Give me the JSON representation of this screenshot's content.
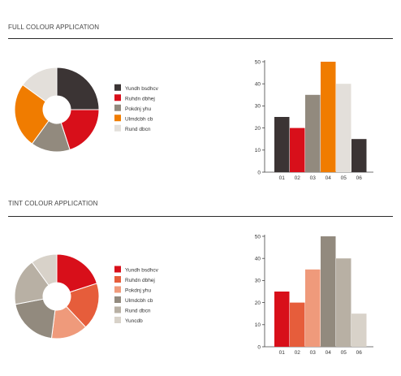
{
  "sections": [
    {
      "title": "FULL COLOUR APPLICATION",
      "pie": {
        "type": "pie",
        "donut": true,
        "labels": [
          "Yundh bsdhcv",
          "Ruhdn dbhej",
          "Pokdnj yhu",
          "Ulmdcbh cb",
          "Rund dbcn"
        ],
        "values": [
          25,
          20,
          15,
          25,
          15
        ],
        "colors": [
          "#3b3434",
          "#d80f1a",
          "#928a7e",
          "#f07c00",
          "#e3dfda"
        ],
        "legend_position": "right"
      },
      "bar": {
        "type": "bar",
        "categories": [
          "01",
          "02",
          "03",
          "04",
          "05",
          "06"
        ],
        "values": [
          25,
          20,
          35,
          50,
          40,
          15
        ],
        "colors": [
          "#3b3434",
          "#d80f1a",
          "#928a7e",
          "#f07c00",
          "#e3dfda",
          "#3b3434"
        ],
        "ylim": [
          0,
          50
        ],
        "yticks": [
          0,
          10,
          20,
          30,
          40,
          50
        ],
        "grid": false
      }
    },
    {
      "title": "TINT COLOUR APPLICATION",
      "pie": {
        "type": "pie",
        "donut": true,
        "labels": [
          "Yundh bsdhcv",
          "Ruhdn dbhej",
          "Pokdnj yhu",
          "Ulmdcbh cb",
          "Rund dbcn",
          "Yuncdb"
        ],
        "values": [
          20,
          18,
          14,
          20,
          18,
          10
        ],
        "colors": [
          "#d80f1a",
          "#e65d3b",
          "#ef9a7b",
          "#928a7e",
          "#b8b0a4",
          "#d8d2c9"
        ],
        "legend_position": "right"
      },
      "bar": {
        "type": "bar",
        "categories": [
          "01",
          "02",
          "03",
          "04",
          "05",
          "06"
        ],
        "values": [
          25,
          20,
          35,
          50,
          40,
          15
        ],
        "colors": [
          "#d80f1a",
          "#e65d3b",
          "#ef9a7b",
          "#928a7e",
          "#b8b0a4",
          "#d8d2c9"
        ],
        "ylim": [
          0,
          50
        ],
        "yticks": [
          0,
          10,
          20,
          30,
          40,
          50
        ],
        "grid": false
      }
    }
  ],
  "chart_data": [
    {
      "type": "pie",
      "title": "",
      "labels": [
        "Yundh bsdhcv",
        "Ruhdn dbhej",
        "Pokdnj yhu",
        "Ulmdcbh cb",
        "Rund dbcn"
      ],
      "values": [
        25,
        20,
        15,
        25,
        15
      ]
    },
    {
      "type": "bar",
      "title": "",
      "categories": [
        "01",
        "02",
        "03",
        "04",
        "05",
        "06"
      ],
      "values": [
        25,
        20,
        35,
        50,
        40,
        15
      ],
      "ylim": [
        0,
        50
      ]
    },
    {
      "type": "pie",
      "title": "",
      "labels": [
        "Yundh bsdhcv",
        "Ruhdn dbhej",
        "Pokdnj yhu",
        "Ulmdcbh cb",
        "Rund dbcn",
        "Yuncdb"
      ],
      "values": [
        20,
        18,
        14,
        20,
        18,
        10
      ]
    },
    {
      "type": "bar",
      "title": "",
      "categories": [
        "01",
        "02",
        "03",
        "04",
        "05",
        "06"
      ],
      "values": [
        25,
        20,
        35,
        50,
        40,
        15
      ],
      "ylim": [
        0,
        50
      ]
    }
  ]
}
